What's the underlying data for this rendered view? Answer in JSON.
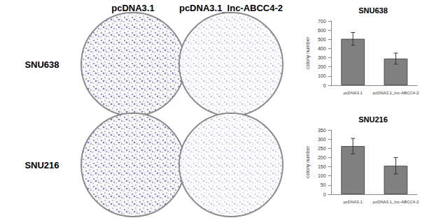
{
  "figure": {
    "column_labels": [
      "pcDNA3.1",
      "pcDNA3.1_lnc-ABCC4-2"
    ],
    "row_labels": [
      "SNU638",
      "SNU216"
    ]
  },
  "chart_data": [
    {
      "type": "bar",
      "title": "SNU638",
      "y_label": "colony number",
      "categories": [
        "pcDNA3.1",
        "pcDNA3.1_lnc-ABCC4-2"
      ],
      "values": [
        505,
        290
      ],
      "error": [
        70,
        60
      ],
      "color": "#808080",
      "ylim": [
        0,
        700
      ],
      "yticks": [
        0,
        100,
        200,
        300,
        400,
        500,
        600,
        700
      ],
      "grid": false
    },
    {
      "type": "bar",
      "title": "SNU216",
      "y_label": "colony number",
      "categories": [
        "pcDNA3.1",
        "pcDNA3.1_lnc-ABCC4-2"
      ],
      "values": [
        262,
        155
      ],
      "error": [
        42,
        45
      ],
      "color": "#808080",
      "ylim": [
        0,
        350
      ],
      "yticks": [
        0,
        50,
        100,
        150,
        200,
        250,
        300,
        350
      ],
      "grid": false
    }
  ]
}
